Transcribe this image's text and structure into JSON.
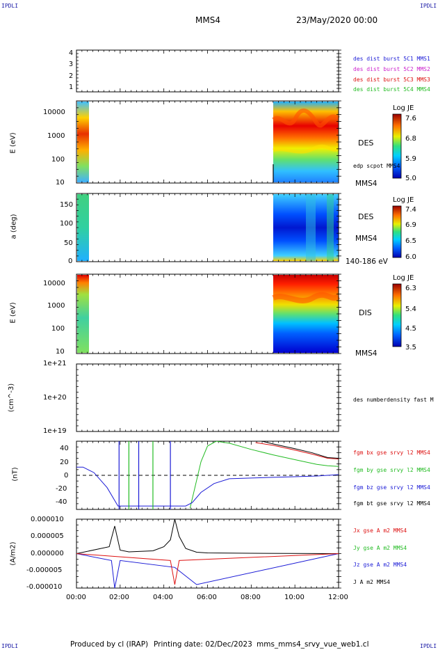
{
  "header": {
    "corner_left": "IPDLI",
    "corner_right": "IPDLI",
    "spacecraft": "MMS4",
    "date": "23/May/2020 00:00"
  },
  "footer": {
    "produced_by": "Produced by cl (IRAP)",
    "printing_date": "Printing date: 02/Dec/2023",
    "filename": "mms_mms4_srvy_vue_web1.cl",
    "corner_left": "IPDLI",
    "corner_right": "IPDLI"
  },
  "time_axis": {
    "ticks": [
      "00:00",
      "02:00",
      "04:00",
      "06:00",
      "08:00",
      "10:00",
      "12:00"
    ]
  },
  "panels": {
    "p1": {
      "yticks": [
        "4",
        "3",
        "2",
        "1"
      ],
      "legend": [
        {
          "label": "des dist burst 5C1 MMS1",
          "color": "#1a1ad6"
        },
        {
          "label": "des dist burst 5C2 MMS2",
          "color": "#cc22cc"
        },
        {
          "label": "des dist burst 5C3 MMS3",
          "color": "#dd1111"
        },
        {
          "label": "des dist burst 5C4 MMS4",
          "color": "#22bb22"
        }
      ]
    },
    "p2": {
      "ylabel": "E (eV)",
      "yticks": [
        "10000",
        "1000",
        "100",
        "10"
      ],
      "right1": "DES",
      "right2": "edp scpot MMS4",
      "right3": "MMS4",
      "cbar_title": "Log JE",
      "cbar_ticks": [
        "7.6",
        "6.8",
        "5.9",
        "5.0"
      ]
    },
    "p3": {
      "ylabel": "a (deg)",
      "yticks": [
        "150",
        "100",
        "50",
        "0"
      ],
      "right1": "DES",
      "right2": "MMS4",
      "right3": "140-186 eV",
      "cbar_title": "Log JE",
      "cbar_ticks": [
        "7.4",
        "6.9",
        "6.5",
        "6.0"
      ]
    },
    "p4": {
      "ylabel": "E (eV)",
      "yticks": [
        "10000",
        "1000",
        "100",
        "10"
      ],
      "right1": "DIS",
      "right3": "MMS4",
      "cbar_title": "Log JE",
      "cbar_ticks": [
        "6.3",
        "5.4",
        "4.5",
        "3.5"
      ]
    },
    "p5": {
      "ylabel": "(cm^-3)",
      "yticks": [
        "1e+21",
        "1e+20",
        "1e+19"
      ],
      "legend": "des numberdensity fast M"
    },
    "p6": {
      "ylabel": "(nT)",
      "yticks": [
        "40",
        "20",
        "0",
        "-20",
        "-40"
      ],
      "legend": [
        {
          "label": "fgm bx gse srvy l2 MMS4",
          "color": "#dd1111"
        },
        {
          "label": "fgm by gse srvy l2 MMS4",
          "color": "#22bb22"
        },
        {
          "label": "fgm bz gse srvy l2 MMS4",
          "color": "#1a1ad6"
        },
        {
          "label": "fgm bt gse srvy l2 MMS4",
          "color": "#000000"
        }
      ]
    },
    "p7": {
      "ylabel": "(A/m2)",
      "yticks": [
        "0.000010",
        "0.000005",
        "0.000000",
        "-0.000005",
        "-0.000010"
      ],
      "legend": [
        {
          "label": "Jx gse A m2 MMS4",
          "color": "#dd1111"
        },
        {
          "label": "Jy gse A m2 MMS4",
          "color": "#22bb22"
        },
        {
          "label": "Jz gse A m2 MMS4",
          "color": "#1a1ad6"
        },
        {
          "label": "J A m2 MMS4",
          "color": "#000000"
        }
      ]
    }
  },
  "chart_data": [
    {
      "type": "line",
      "panel": "magnetic field (nT)",
      "x_unit": "hours since 00:00 UT",
      "ylim": [
        -50,
        50
      ],
      "series": [
        {
          "name": "fgm bx gse srvy l2 MMS4",
          "color": "#dd1111",
          "x": [
            8.2,
            9.0,
            10.0,
            10.8,
            11.5,
            12.0
          ],
          "y": [
            48,
            44,
            37,
            31,
            25,
            24
          ]
        },
        {
          "name": "fgm by gse srvy l2 MMS4",
          "color": "#22bb22",
          "x": [
            5.2,
            5.7,
            6.0,
            6.4,
            7.0,
            8.0,
            9.0,
            10.0,
            11.0,
            11.5,
            12.0
          ],
          "y": [
            -48,
            20,
            43,
            50,
            47,
            38,
            30,
            23,
            16,
            14,
            13
          ]
        },
        {
          "name": "fgm bz gse srvy l2 MMS4",
          "color": "#1a1ad6",
          "x": [
            0.0,
            0.3,
            0.8,
            1.4,
            1.9,
            5.0,
            5.3,
            5.7,
            6.3,
            7.0,
            8.0,
            9.0,
            10.0,
            11.0,
            12.0
          ],
          "y": [
            12,
            12,
            4,
            -18,
            -45,
            -45,
            -40,
            -25,
            -12,
            -5,
            -4,
            -3,
            -2,
            -1,
            1
          ]
        },
        {
          "name": "fgm bt gse srvy l2 MMS4",
          "color": "#000000",
          "x": [
            8.5,
            9.0,
            10.0,
            10.8,
            11.5,
            12.0
          ],
          "y": [
            50,
            46,
            39,
            33,
            26,
            25
          ]
        }
      ]
    },
    {
      "type": "line",
      "panel": "current density (A/m2)",
      "x_unit": "hours since 00:00 UT",
      "ylim": [
        -1e-05,
        1e-05
      ],
      "series": [
        {
          "name": "J A m2 MMS4",
          "color": "#000000",
          "x": [
            0.0,
            1.5,
            1.75,
            2.0,
            2.4,
            3.5,
            4.0,
            4.3,
            4.5,
            4.7,
            5.0,
            5.5,
            6.0,
            8.0,
            12.0
          ],
          "y": [
            0.0,
            2e-06,
            8e-06,
            1e-06,
            5e-07,
            8e-07,
            2e-06,
            4e-06,
            1e-05,
            5e-06,
            1.5e-06,
            4e-07,
            2e-07,
            1e-07,
            0.0
          ]
        },
        {
          "name": "Jz gse A m2 MMS4",
          "color": "#1a1ad6",
          "x": [
            0.0,
            1.6,
            1.75,
            2.0,
            4.5,
            5.5,
            12.0
          ],
          "y": [
            0.0,
            -2e-06,
            -1e-05,
            -2e-06,
            -4e-06,
            -9e-06,
            0.0
          ]
        },
        {
          "name": "Jx gse A m2 MMS4",
          "color": "#dd1111",
          "x": [
            0.0,
            4.3,
            4.5,
            4.7,
            12.0
          ],
          "y": [
            0.0,
            -2e-06,
            -9e-06,
            -2e-06,
            0.0
          ]
        }
      ]
    }
  ]
}
